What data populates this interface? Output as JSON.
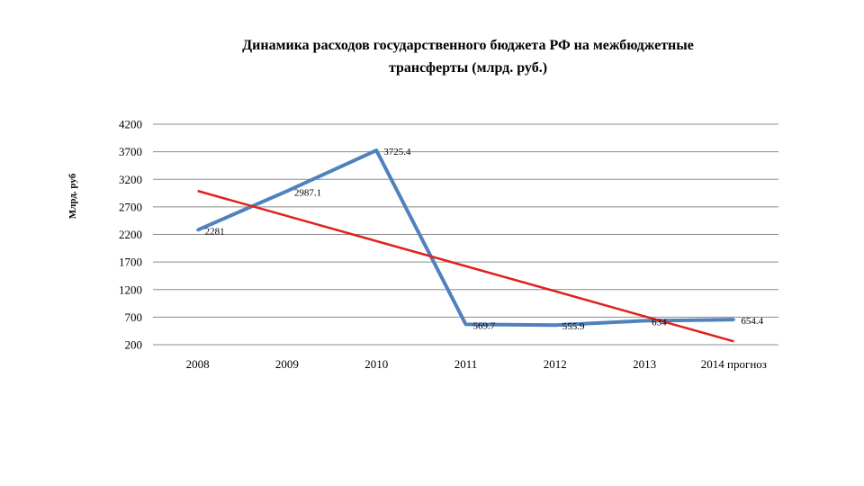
{
  "chart_data": {
    "type": "line",
    "title_lines": [
      "Динамика расходов государственного бюджета РФ на межбюджетные",
      "трансферты  (млрд. руб.)"
    ],
    "ylabel": "Млрд. руб",
    "xlabel": "",
    "categories": [
      "2008",
      "2009",
      "2010",
      "2011",
      "2012",
      "2013",
      "2014 прогноз"
    ],
    "y_ticks": [
      200,
      700,
      1200,
      1700,
      2200,
      2700,
      3200,
      3700,
      4200
    ],
    "ylim": [
      200,
      4200
    ],
    "grid": "horizontal",
    "series": [
      {
        "values": [
          2281,
          2987.1,
          3725.4,
          569.7,
          555.9,
          634,
          654.4
        ],
        "labels": [
          "2281",
          "2987.1",
          "3725.4",
          "569.7",
          "555.9",
          "634",
          "654.4"
        ],
        "color": "#4f81bd"
      },
      {
        "kind": "linear-trend",
        "values": [
          2990,
          2535,
          2080,
          1625,
          1170,
          715,
          260
        ],
        "color": "#e0201c"
      }
    ]
  }
}
